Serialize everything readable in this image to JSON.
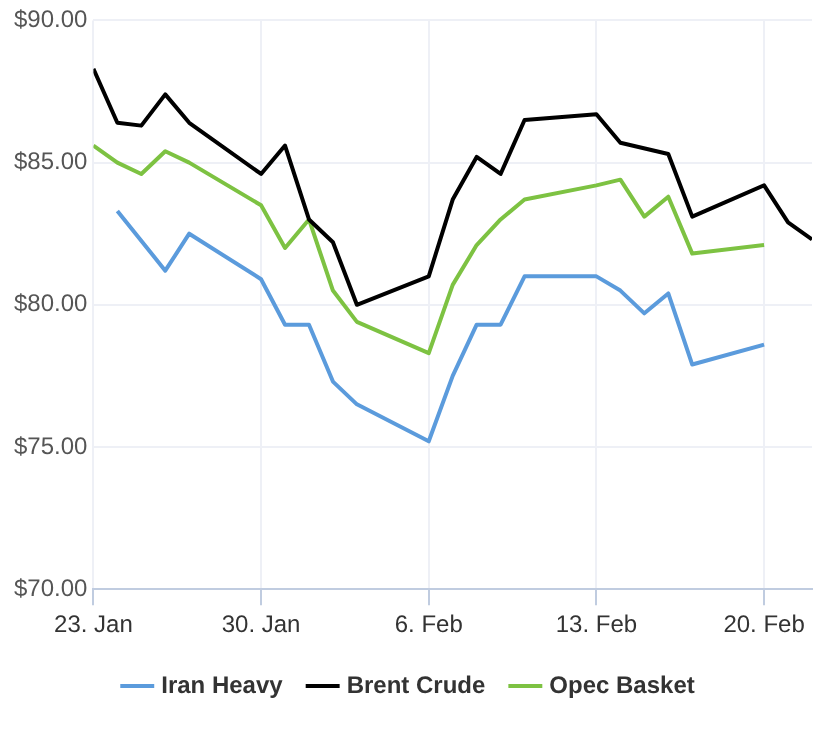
{
  "chart_data": {
    "type": "line",
    "xlim": [
      "--01-23",
      "--02-22"
    ],
    "xticks": [
      {
        "value": "--01-23",
        "label": "23. Jan"
      },
      {
        "value": "--01-30",
        "label": "30. Jan"
      },
      {
        "value": "--02-06",
        "label": "6. Feb"
      },
      {
        "value": "--02-13",
        "label": "13. Feb"
      },
      {
        "value": "--02-20",
        "label": "20. Feb"
      }
    ],
    "ylim": [
      70,
      90
    ],
    "yticks": [
      {
        "value": 70,
        "label": "$70.00"
      },
      {
        "value": 75,
        "label": "$75.00"
      },
      {
        "value": 80,
        "label": "$80.00"
      },
      {
        "value": 85,
        "label": "$85.00"
      },
      {
        "value": 90,
        "label": "$90.00"
      }
    ],
    "grid": true,
    "legend": "bottom",
    "marker": "none",
    "line_style": "solid",
    "series": [
      {
        "name": "Iran Heavy",
        "color": "#5b9bdc",
        "x": [
          "--01-24",
          "--01-26",
          "--01-27",
          "--01-30",
          "--01-31",
          "--02-01",
          "--02-02",
          "--02-03",
          "--02-06",
          "--02-07",
          "--02-08",
          "--02-09",
          "--02-10",
          "--02-13",
          "--02-14",
          "--02-15",
          "--02-16",
          "--02-17",
          "--02-20"
        ],
        "values": [
          83.3,
          81.2,
          82.5,
          80.9,
          79.3,
          79.3,
          77.3,
          76.5,
          75.2,
          77.5,
          79.3,
          79.3,
          81.0,
          81.0,
          80.5,
          79.7,
          80.4,
          77.9,
          78.6
        ]
      },
      {
        "name": "Brent Crude",
        "color": "#000000",
        "x": [
          "--01-23",
          "--01-24",
          "--01-25",
          "--01-26",
          "--01-27",
          "--01-30",
          "--01-31",
          "--02-01",
          "--02-02",
          "--02-03",
          "--02-06",
          "--02-07",
          "--02-08",
          "--02-09",
          "--02-10",
          "--02-13",
          "--02-14",
          "--02-16",
          "--02-17",
          "--02-20",
          "--02-21",
          "--02-22"
        ],
        "values": [
          88.3,
          86.4,
          86.3,
          87.4,
          86.4,
          84.6,
          85.6,
          83.0,
          82.2,
          80.0,
          81.0,
          83.7,
          85.2,
          84.6,
          86.5,
          86.7,
          85.7,
          85.3,
          83.1,
          84.2,
          82.9,
          82.3
        ]
      },
      {
        "name": "Opec Basket",
        "color": "#7dc242",
        "x": [
          "--01-23",
          "--01-24",
          "--01-25",
          "--01-26",
          "--01-27",
          "--01-30",
          "--01-31",
          "--02-01",
          "--02-02",
          "--02-03",
          "--02-06",
          "--02-07",
          "--02-08",
          "--02-09",
          "--02-10",
          "--02-13",
          "--02-14",
          "--02-15",
          "--02-16",
          "--02-17",
          "--02-20"
        ],
        "values": [
          85.6,
          85.0,
          84.6,
          85.4,
          85.0,
          83.5,
          82.0,
          83.0,
          80.5,
          79.4,
          78.3,
          80.7,
          82.1,
          83.0,
          83.7,
          84.2,
          84.4,
          83.1,
          83.8,
          81.8,
          82.1
        ]
      }
    ]
  }
}
